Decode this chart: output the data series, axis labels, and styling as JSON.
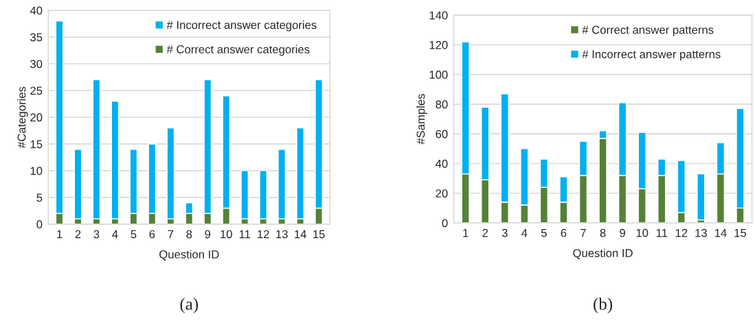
{
  "chart_data": [
    {
      "type": "bar",
      "stacked": true,
      "xlabel": "Question ID",
      "ylabel": "#Categories",
      "categories": [
        "1",
        "2",
        "3",
        "4",
        "5",
        "6",
        "7",
        "8",
        "9",
        "10",
        "11",
        "12",
        "13",
        "14",
        "15"
      ],
      "ylim": [
        0,
        40
      ],
      "yticks": [
        0,
        5,
        10,
        15,
        20,
        25,
        30,
        35,
        40
      ],
      "grid": "y",
      "legend": "top right",
      "annotations": [
        "(a)"
      ],
      "series": [
        {
          "name": "# Correct answer categories",
          "color": "#548235",
          "values": [
            2,
            1,
            1,
            1,
            2,
            2,
            1,
            2,
            2,
            3,
            1,
            1,
            1,
            1,
            3
          ]
        },
        {
          "name": "# Incorrect answer categories",
          "color": "#00b0f0",
          "values": [
            36,
            13,
            26,
            22,
            12,
            13,
            17,
            2,
            25,
            21,
            9,
            9,
            13,
            17,
            24
          ]
        }
      ]
    },
    {
      "type": "bar",
      "stacked": true,
      "xlabel": "Question ID",
      "ylabel": "#Samples",
      "categories": [
        "1",
        "2",
        "3",
        "4",
        "5",
        "6",
        "7",
        "8",
        "9",
        "10",
        "11",
        "12",
        "13",
        "14",
        "15"
      ],
      "ylim": [
        0,
        140
      ],
      "yticks": [
        0,
        20,
        40,
        60,
        80,
        100,
        120,
        140
      ],
      "grid": "y",
      "legend": "top right",
      "annotations": [
        "(b)"
      ],
      "series": [
        {
          "name": "# Correct answer patterns",
          "color": "#548235",
          "values": [
            33,
            29,
            14,
            12,
            24,
            14,
            32,
            57,
            32,
            23,
            32,
            7,
            2,
            33,
            10
          ]
        },
        {
          "name": "# Incorrect answer patterns",
          "color": "#00b0f0",
          "values": [
            89,
            49,
            73,
            38,
            19,
            17,
            23,
            5,
            49,
            38,
            11,
            35,
            31,
            21,
            67
          ]
        }
      ]
    }
  ]
}
